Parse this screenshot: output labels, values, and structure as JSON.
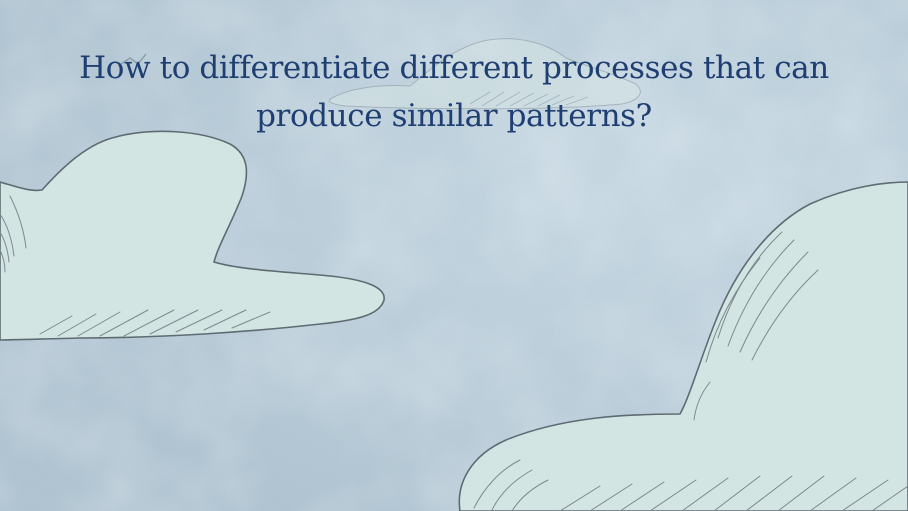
{
  "slide": {
    "title_lines": [
      "How to differentiate different processes that can",
      "produce similar patterns?"
    ]
  },
  "colors": {
    "sky": "#b7ccd9",
    "sky_light": "#c6d8e3",
    "cloud_fill": "#d3e5e3",
    "cloud_outline": "#5f6b72",
    "cloud_hatch": "#7c8990",
    "title_text": "#1f3f73"
  },
  "decorations": [
    "cloud-left",
    "cloud-top-faint",
    "cloud-bottom-right"
  ]
}
